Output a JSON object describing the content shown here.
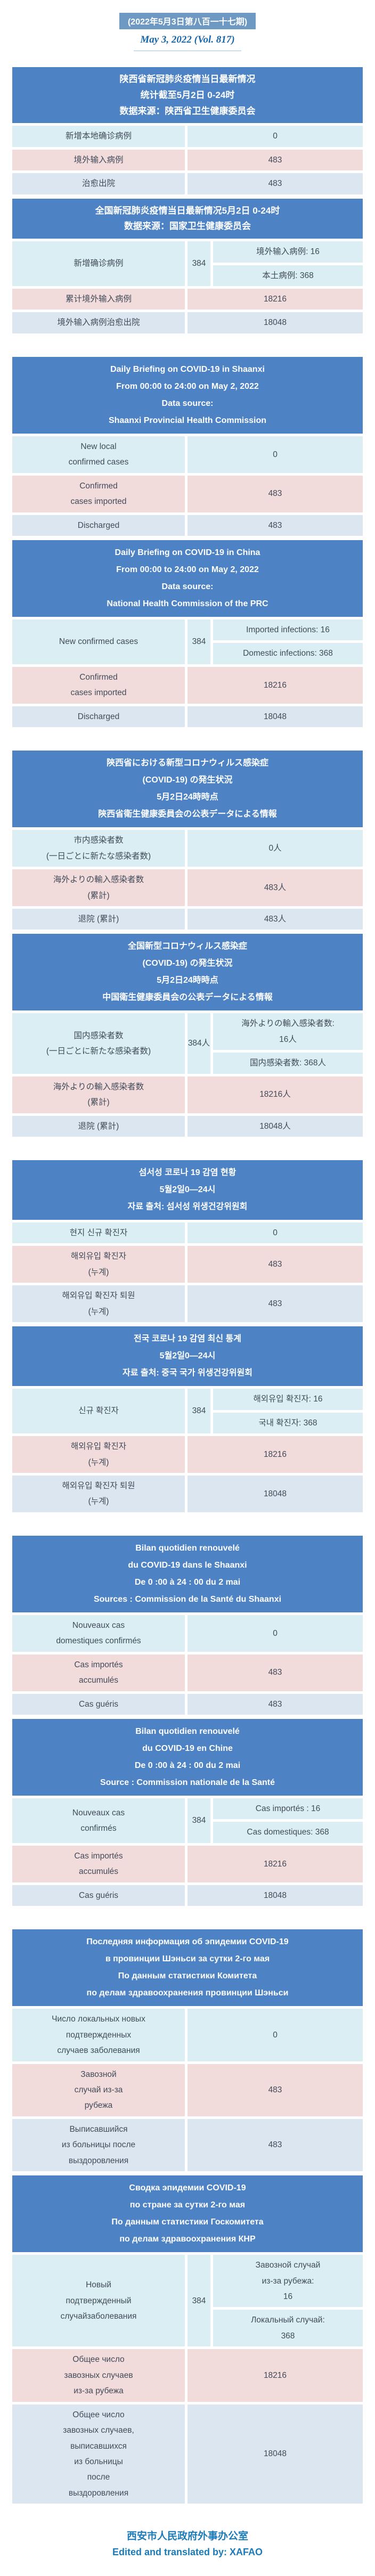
{
  "page": {
    "issue_badge": "(2022年5月3日第八百一十七期)",
    "issue_date_en": "May 3, 2022 (Vol. 817)",
    "footer_cn": "西安市人民政府外事办公室",
    "footer_en": "Edited and translated by: XAFAO"
  },
  "colors": {
    "section_header_blue": "#4D82C4",
    "issue_badge_blue": "#6D99C2",
    "row_light_cyan": "#DAEEF3",
    "row_pink": "#F2DBDB",
    "row_periwinkle": "#DCE6F1",
    "issue_date_blue": "#1766A9",
    "footer_blue": "#1B7AB8"
  },
  "sections": [
    {
      "language": "Chinese",
      "provincial": {
        "header": "陕西省新冠肺炎疫情当日最新情况\n统计截至5月2日 0-24时\n数据来源：陕西省卫生健康委员会",
        "row1": {
          "label": "新增本地确诊病例",
          "value": "0"
        },
        "row2": {
          "label": "境外输入病例",
          "value": "483"
        },
        "row3": {
          "label": "治愈出院",
          "value": "483"
        }
      },
      "national": {
        "header": "全国新冠肺炎疫情当日最新情况5月2日 0-24时\n数据来源：国家卫生健康委员会",
        "merged": {
          "label": "新增确诊病例",
          "total": "384",
          "sub1": "境外输入病例: 16",
          "sub2": "本土病例: 368"
        },
        "row2": {
          "label": "累计境外输入病例",
          "value": "18216"
        },
        "row3": {
          "label": "境外输入病例治愈出院",
          "value": "18048"
        }
      }
    },
    {
      "language": "English",
      "provincial": {
        "header": "Daily Briefing on COVID-19 in Shaanxi\nFrom 00:00 to 24:00 on May 2, 2022\nData source:\nShaanxi Provincial Health Commission",
        "row1": {
          "label": "New local\nconfirmed cases",
          "value": "0"
        },
        "row2": {
          "label": "Confirmed\ncases imported",
          "value": "483"
        },
        "row3": {
          "label": "Discharged",
          "value": "483"
        }
      },
      "national": {
        "header": "Daily Briefing on COVID-19 in China\nFrom 00:00 to 24:00 on May 2, 2022\nData source:\nNational Health Commission of the PRC",
        "merged": {
          "label": "New confirmed cases",
          "total": "384",
          "sub1": "Imported infections: 16",
          "sub2": "Domestic infections: 368"
        },
        "row2": {
          "label": "Confirmed\ncases imported",
          "value": "18216"
        },
        "row3": {
          "label": "Discharged",
          "value": "18048"
        }
      }
    },
    {
      "language": "Japanese",
      "provincial": {
        "header": "陝西省における新型コロナウィルス感染症\n(COVID-19) の発生状況\n5月2日24時時点\n陝西省衛生健康委員会の公表データによる情報",
        "row1": {
          "label": "市内感染者数\n(一日ごとに新たな感染者数)",
          "value": "0人"
        },
        "row2": {
          "label": "海外よりの輸入感染者数\n(累計)",
          "value": "483人"
        },
        "row3": {
          "label": "退院 (累計)",
          "value": "483人"
        }
      },
      "national": {
        "header": "全国新型コロナウィルス感染症\n(COVID-19) の発生状況\n5月2日24時時点\n中国衛生健康委員会の公表データによる情報",
        "merged": {
          "label": "国内感染者数\n(一日ごとに新たな感染者数)",
          "total": "384人",
          "sub1": "海外よりの輸入感染者数:\n16人",
          "sub2": "国内感染者数: 368人"
        },
        "row2": {
          "label": "海外よりの輸入感染者数\n(累計)",
          "value": "18216人"
        },
        "row3": {
          "label": "退院 (累計)",
          "value": "18048人"
        }
      }
    },
    {
      "language": "Korean",
      "provincial": {
        "header": "섬서성 코로나 19 감염 현황\n5월2일0—24시\n자료 출처: 섬서성 위생건강위원회",
        "row1": {
          "label": "현지 신규 확진자",
          "value": "0"
        },
        "row2": {
          "label": "해외유입 확진자\n(누계)",
          "value": "483"
        },
        "row3": {
          "label": "해외유입 확진자 퇴원\n(누계)",
          "value": "483"
        }
      },
      "national": {
        "header": "전국 코로나 19 감염 최신 통계\n5월2일0—24시\n자료 출처: 중국 국가 위생건강위원회",
        "merged": {
          "label": "신규 확진자",
          "total": "384",
          "sub1": "해외유입 확진자: 16",
          "sub2": "국내 확진자: 368"
        },
        "row2": {
          "label": "해외유입 확진자\n(누계)",
          "value": "18216"
        },
        "row3": {
          "label": "해외유입 확진자 퇴원\n(누계)",
          "value": "18048"
        }
      }
    },
    {
      "language": "French",
      "provincial": {
        "header": "Bilan quotidien renouvelé\ndu COVID-19 dans le Shaanxi\nDe 0 :00 à 24 : 00 du 2 mai\nSources : Commission de la Santé du Shaanxi",
        "row1": {
          "label": "Nouveaux cas\ndomestiques confirmés",
          "value": "0"
        },
        "row2": {
          "label": "Cas importés\naccumulés",
          "value": "483"
        },
        "row3": {
          "label": "Cas guéris",
          "value": "483"
        }
      },
      "national": {
        "header": "Bilan quotidien renouvelé\ndu COVID-19 en Chine\nDe 0 :00 à 24 : 00 du 2 mai\nSource : Commission nationale de la Santé",
        "merged": {
          "label": "Nouveaux cas\nconfirmés",
          "total": "384",
          "sub1": "Cas importés : 16",
          "sub2": "Cas domestiques: 368"
        },
        "row2": {
          "label": "Cas importés\naccumulés",
          "value": "18216"
        },
        "row3": {
          "label": "Cas guéris",
          "value": "18048"
        }
      }
    },
    {
      "language": "Russian",
      "provincial": {
        "header": "Последняя информация об эпидемии COVID-19\nв провинции Шэньси за сутки 2-го мая\nПо данным статистики Комитета\nпо делам здравоохранения провинции Шэньси",
        "row1": {
          "label": "Число локальных новых\nподтвержденных\nслучаев заболевания",
          "value": "0"
        },
        "row2": {
          "label": "Завозной\nслучай из-за\nрубежа",
          "value": "483"
        },
        "row3": {
          "label": "Выписавшийся\nиз больницы после\nвыздоровления",
          "value": "483"
        }
      },
      "national": {
        "header": "Сводка эпидемии COVID-19\nпо стране за сутки 2-го мая\nПо данным статистики Госкомитета\nпо делам здравоохранения КНР",
        "merged": {
          "label": "Новый\nподтвержденный\nслучайзаболевания",
          "total": "384",
          "sub1": "Завозной случай\nиз-за рубежа:\n16",
          "sub2": "Локальный случай:\n368"
        },
        "row2": {
          "label": "Общее число\nзавозных случаев\nиз-за рубежа",
          "value": "18216"
        },
        "row3": {
          "label": "Общее число\nзавозных случаев,\nвыписавшихся\nиз больницы\nпосле\nвыздоровления",
          "value": "18048"
        }
      }
    }
  ]
}
